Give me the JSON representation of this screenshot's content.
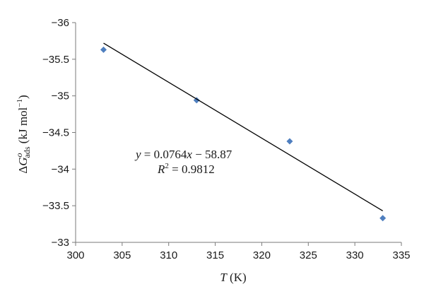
{
  "chart_data": {
    "type": "scatter",
    "title": "",
    "xlabel": {
      "var": "T",
      "unit": " (K)"
    },
    "ylabel": {
      "prefix": "Δ",
      "var": "G",
      "sup": "o",
      "sub": "ads",
      "unit": "  (kJ mol",
      "unit_sup": "−1",
      "unit_close": ")"
    },
    "xlim": [
      300,
      335
    ],
    "ylim": [
      -33,
      -36
    ],
    "y_inverted": true,
    "x_ticks": [
      "300",
      "305",
      "310",
      "315",
      "320",
      "325",
      "330",
      "335"
    ],
    "y_ticks": [
      "−36",
      "−35.5",
      "−35",
      "−34.5",
      "−34",
      "−33.5",
      "−33"
    ],
    "grid": false,
    "legend": "none",
    "marker": "diamond",
    "marker_color": "#4f7fbf",
    "line_color": "#000000",
    "points": [
      {
        "x": 303,
        "y": -35.63
      },
      {
        "x": 313,
        "y": -34.94
      },
      {
        "x": 323,
        "y": -34.38
      },
      {
        "x": 333,
        "y": -33.33
      }
    ],
    "trendline": {
      "x": [
        303,
        333
      ],
      "y": [
        -35.72,
        -33.43
      ]
    },
    "equation": {
      "line1": {
        "y": "y",
        "eq": " = 0.0764",
        "x": "x",
        "rest": " − 58.87"
      },
      "line2": {
        "r": "R",
        "sup": "2",
        "rest": " = 0.9812"
      }
    }
  }
}
